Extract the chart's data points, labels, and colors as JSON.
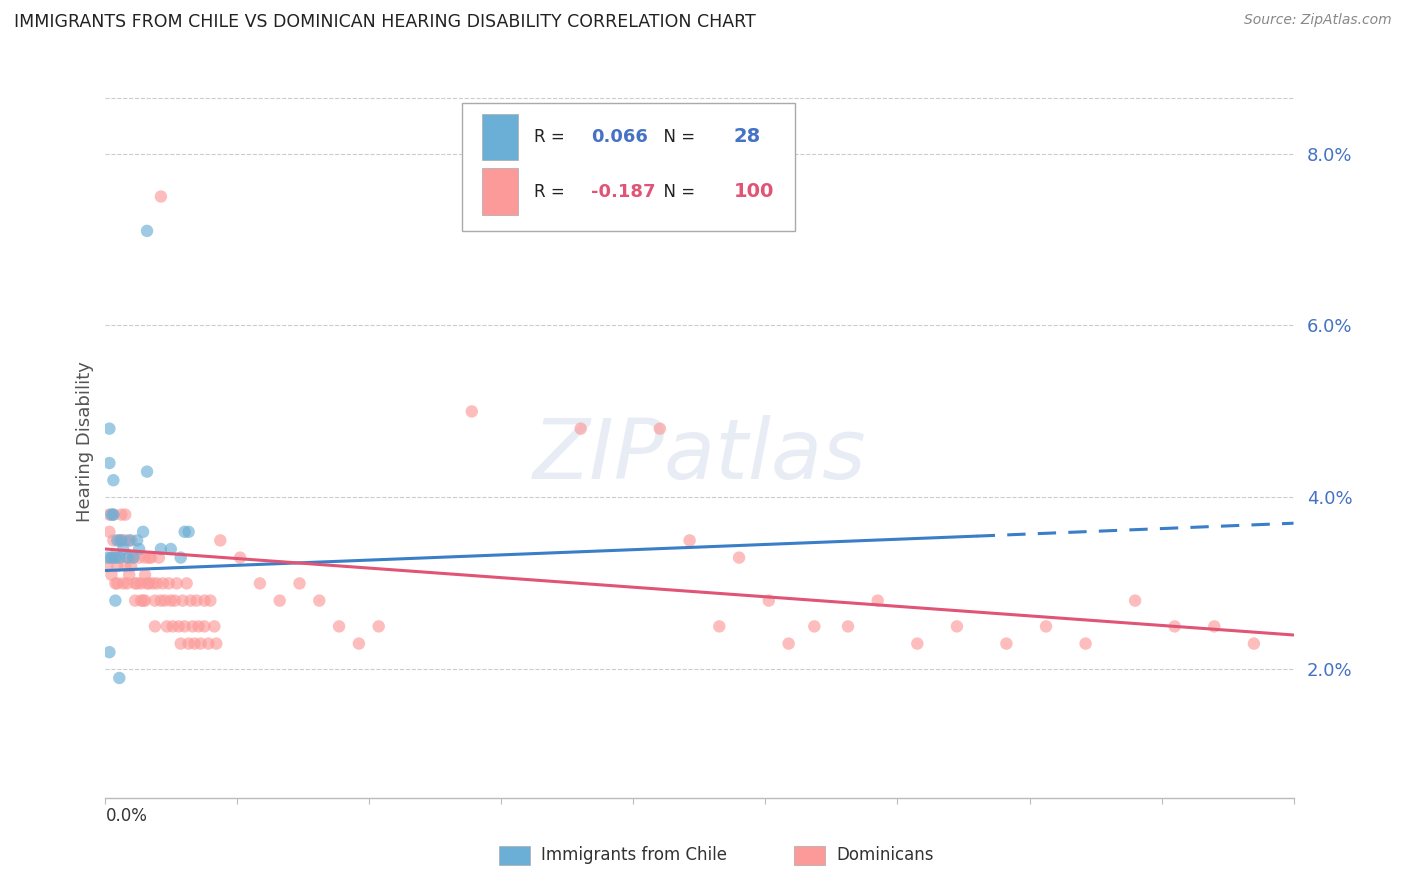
{
  "title": "IMMIGRANTS FROM CHILE VS DOMINICAN HEARING DISABILITY CORRELATION CHART",
  "source": "Source: ZipAtlas.com",
  "ylabel": "Hearing Disability",
  "right_yticks": [
    0.02,
    0.04,
    0.06,
    0.08
  ],
  "right_ytick_labels": [
    "2.0%",
    "4.0%",
    "6.0%",
    "8.0%"
  ],
  "legend_chile_color": "#6baed6",
  "legend_dominican_color": "#fb9a99",
  "chile_R": "0.066",
  "chile_N": "28",
  "dominican_R": "-0.187",
  "dominican_N": "100",
  "watermark": "ZIPatlas",
  "chile_scatter": [
    [
      0.001,
      0.033
    ],
    [
      0.002,
      0.048
    ],
    [
      0.002,
      0.044
    ],
    [
      0.003,
      0.038
    ],
    [
      0.003,
      0.033
    ],
    [
      0.004,
      0.042
    ],
    [
      0.004,
      0.038
    ],
    [
      0.005,
      0.033
    ],
    [
      0.005,
      0.028
    ],
    [
      0.006,
      0.035
    ],
    [
      0.007,
      0.033
    ],
    [
      0.008,
      0.035
    ],
    [
      0.009,
      0.034
    ],
    [
      0.011,
      0.033
    ],
    [
      0.012,
      0.035
    ],
    [
      0.014,
      0.033
    ],
    [
      0.016,
      0.035
    ],
    [
      0.017,
      0.034
    ],
    [
      0.019,
      0.036
    ],
    [
      0.021,
      0.043
    ],
    [
      0.021,
      0.071
    ],
    [
      0.028,
      0.034
    ],
    [
      0.033,
      0.034
    ],
    [
      0.038,
      0.033
    ],
    [
      0.04,
      0.036
    ],
    [
      0.042,
      0.036
    ],
    [
      0.002,
      0.022
    ],
    [
      0.007,
      0.019
    ]
  ],
  "dominican_scatter": [
    [
      0.001,
      0.032
    ],
    [
      0.002,
      0.038
    ],
    [
      0.002,
      0.036
    ],
    [
      0.003,
      0.033
    ],
    [
      0.003,
      0.031
    ],
    [
      0.004,
      0.038
    ],
    [
      0.004,
      0.035
    ],
    [
      0.004,
      0.033
    ],
    [
      0.005,
      0.03
    ],
    [
      0.005,
      0.033
    ],
    [
      0.006,
      0.032
    ],
    [
      0.006,
      0.03
    ],
    [
      0.007,
      0.035
    ],
    [
      0.007,
      0.033
    ],
    [
      0.008,
      0.038
    ],
    [
      0.008,
      0.035
    ],
    [
      0.009,
      0.03
    ],
    [
      0.01,
      0.038
    ],
    [
      0.01,
      0.035
    ],
    [
      0.01,
      0.032
    ],
    [
      0.011,
      0.03
    ],
    [
      0.012,
      0.033
    ],
    [
      0.012,
      0.031
    ],
    [
      0.013,
      0.035
    ],
    [
      0.013,
      0.032
    ],
    [
      0.014,
      0.033
    ],
    [
      0.015,
      0.03
    ],
    [
      0.015,
      0.028
    ],
    [
      0.016,
      0.03
    ],
    [
      0.017,
      0.033
    ],
    [
      0.018,
      0.03
    ],
    [
      0.018,
      0.028
    ],
    [
      0.019,
      0.028
    ],
    [
      0.02,
      0.033
    ],
    [
      0.02,
      0.031
    ],
    [
      0.02,
      0.028
    ],
    [
      0.021,
      0.03
    ],
    [
      0.022,
      0.033
    ],
    [
      0.022,
      0.03
    ],
    [
      0.023,
      0.033
    ],
    [
      0.024,
      0.03
    ],
    [
      0.025,
      0.028
    ],
    [
      0.025,
      0.025
    ],
    [
      0.026,
      0.03
    ],
    [
      0.027,
      0.033
    ],
    [
      0.028,
      0.028
    ],
    [
      0.029,
      0.03
    ],
    [
      0.03,
      0.028
    ],
    [
      0.031,
      0.025
    ],
    [
      0.032,
      0.03
    ],
    [
      0.033,
      0.028
    ],
    [
      0.034,
      0.025
    ],
    [
      0.035,
      0.028
    ],
    [
      0.036,
      0.03
    ],
    [
      0.037,
      0.025
    ],
    [
      0.038,
      0.023
    ],
    [
      0.039,
      0.028
    ],
    [
      0.04,
      0.025
    ],
    [
      0.041,
      0.03
    ],
    [
      0.042,
      0.023
    ],
    [
      0.043,
      0.028
    ],
    [
      0.044,
      0.025
    ],
    [
      0.045,
      0.023
    ],
    [
      0.046,
      0.028
    ],
    [
      0.047,
      0.025
    ],
    [
      0.048,
      0.023
    ],
    [
      0.05,
      0.028
    ],
    [
      0.05,
      0.025
    ],
    [
      0.052,
      0.023
    ],
    [
      0.053,
      0.028
    ],
    [
      0.055,
      0.025
    ],
    [
      0.056,
      0.023
    ],
    [
      0.028,
      0.075
    ],
    [
      0.185,
      0.05
    ],
    [
      0.24,
      0.048
    ],
    [
      0.058,
      0.035
    ],
    [
      0.068,
      0.033
    ],
    [
      0.078,
      0.03
    ],
    [
      0.088,
      0.028
    ],
    [
      0.098,
      0.03
    ],
    [
      0.108,
      0.028
    ],
    [
      0.118,
      0.025
    ],
    [
      0.128,
      0.023
    ],
    [
      0.138,
      0.025
    ],
    [
      0.28,
      0.048
    ],
    [
      0.295,
      0.035
    ],
    [
      0.31,
      0.025
    ],
    [
      0.32,
      0.033
    ],
    [
      0.335,
      0.028
    ],
    [
      0.345,
      0.023
    ],
    [
      0.358,
      0.025
    ],
    [
      0.375,
      0.025
    ],
    [
      0.39,
      0.028
    ],
    [
      0.41,
      0.023
    ],
    [
      0.43,
      0.025
    ],
    [
      0.455,
      0.023
    ],
    [
      0.475,
      0.025
    ],
    [
      0.495,
      0.023
    ],
    [
      0.52,
      0.028
    ],
    [
      0.54,
      0.025
    ],
    [
      0.56,
      0.025
    ],
    [
      0.58,
      0.023
    ]
  ],
  "chile_line_solid": {
    "x0": 0.0,
    "y0": 0.0315,
    "x1": 0.44,
    "y1": 0.0355
  },
  "chile_line_dashed": {
    "x0": 0.44,
    "y0": 0.0355,
    "x1": 0.6,
    "y1": 0.037
  },
  "dominican_line": {
    "x0": 0.0,
    "y0": 0.034,
    "x1": 0.6,
    "y1": 0.024
  },
  "xlim": [
    0.0,
    0.6
  ],
  "ylim": [
    0.005,
    0.088
  ],
  "bg_color": "#ffffff",
  "scatter_alpha": 0.65,
  "scatter_size": 80,
  "chile_line_color": "#3a7ec8",
  "dominican_line_color": "#e05575",
  "line_width": 2.2
}
